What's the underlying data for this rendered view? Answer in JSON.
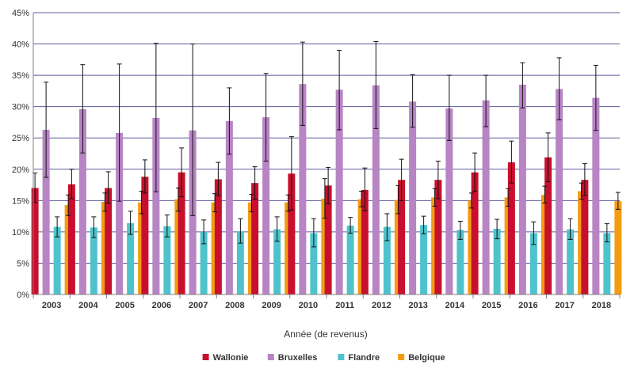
{
  "chart_data": {
    "type": "bar",
    "title": "",
    "xlabel": "Année (de revenus)",
    "ylabel": "",
    "ylim": [
      0,
      45
    ],
    "y_ticks": [
      "0%",
      "5%",
      "10%",
      "15%",
      "20%",
      "25%",
      "30%",
      "35%",
      "40%",
      "45%"
    ],
    "y_tick_values": [
      0,
      5,
      10,
      15,
      20,
      25,
      30,
      35,
      40,
      45
    ],
    "grid": true,
    "legend_position": "bottom",
    "categories": [
      "2003",
      "2004",
      "2005",
      "2006",
      "2007",
      "2008",
      "2009",
      "2010",
      "2011",
      "2012",
      "2013",
      "2014",
      "2015",
      "2016",
      "2017",
      "2018"
    ],
    "series": [
      {
        "name": "Wallonie",
        "color": "#c8102e",
        "values": [
          17.0,
          17.6,
          17.0,
          18.8,
          19.5,
          18.4,
          17.8,
          19.3,
          17.4,
          16.7,
          18.3,
          18.3,
          19.5,
          21.1,
          21.9,
          18.3
        ],
        "err_low": [
          14.7,
          15.3,
          14.6,
          16.2,
          15.6,
          15.8,
          15.2,
          13.5,
          14.5,
          13.4,
          15.0,
          15.3,
          16.5,
          17.8,
          18.0,
          15.8
        ],
        "err_high": [
          19.4,
          20.0,
          19.6,
          21.5,
          23.4,
          21.1,
          20.4,
          25.2,
          20.3,
          20.2,
          21.6,
          21.3,
          22.6,
          24.5,
          25.8,
          20.9
        ]
      },
      {
        "name": "Bruxelles",
        "color": "#b784c4",
        "values": [
          26.3,
          29.6,
          25.8,
          28.2,
          26.2,
          27.7,
          28.3,
          33.6,
          32.7,
          33.4,
          30.8,
          29.7,
          31.0,
          33.5,
          32.8,
          31.4
        ],
        "err_low": [
          18.7,
          22.6,
          14.9,
          16.4,
          12.6,
          22.4,
          21.3,
          27.0,
          26.3,
          26.5,
          26.7,
          24.6,
          26.8,
          29.8,
          27.9,
          26.2
        ],
        "err_high": [
          33.9,
          36.7,
          36.8,
          40.1,
          40.0,
          33.0,
          35.3,
          40.3,
          39.0,
          40.4,
          35.1,
          35.0,
          35.0,
          37.0,
          37.8,
          36.6
        ]
      },
      {
        "name": "Flandre",
        "color": "#4fc3cc",
        "values": [
          10.8,
          10.7,
          11.4,
          10.9,
          10.0,
          10.1,
          10.4,
          9.8,
          11.0,
          10.8,
          11.1,
          10.3,
          10.5,
          9.8,
          10.4,
          9.8
        ],
        "err_low": [
          9.2,
          9.1,
          9.6,
          9.2,
          8.1,
          8.2,
          8.5,
          7.6,
          9.8,
          8.6,
          9.7,
          8.8,
          8.9,
          8.0,
          8.8,
          8.4
        ],
        "err_high": [
          12.4,
          12.4,
          13.3,
          12.7,
          11.9,
          12.1,
          12.4,
          12.1,
          12.3,
          12.9,
          12.5,
          11.7,
          12.0,
          11.6,
          12.1,
          11.3
        ]
      },
      {
        "name": "Belgique",
        "color": "#f39c12",
        "values": [
          14.3,
          14.8,
          14.7,
          15.2,
          14.7,
          14.7,
          14.7,
          15.3,
          15.2,
          15.1,
          15.5,
          15.0,
          15.5,
          15.9,
          16.5,
          14.9
        ],
        "err_low": [
          12.6,
          13.3,
          12.9,
          13.3,
          13.2,
          13.2,
          13.3,
          12.2,
          14.0,
          12.9,
          14.1,
          13.8,
          14.1,
          14.6,
          15.2,
          13.6
        ],
        "err_high": [
          15.9,
          16.2,
          16.5,
          17.0,
          16.1,
          16.0,
          15.9,
          18.5,
          16.5,
          17.4,
          16.9,
          16.2,
          16.9,
          17.3,
          17.8,
          16.3
        ]
      }
    ]
  }
}
